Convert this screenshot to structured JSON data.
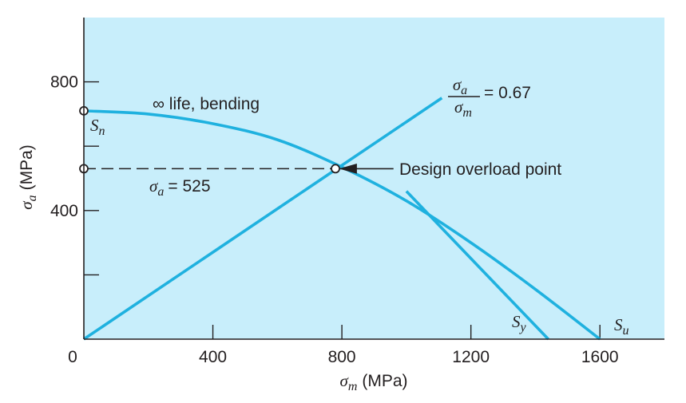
{
  "chart_data": {
    "type": "line",
    "title": "",
    "xlabel": {
      "symbol": "σ",
      "subscript": "m",
      "unit": "(MPa)"
    },
    "ylabel": {
      "symbol": "σ",
      "subscript": "a",
      "unit": "(MPa)"
    },
    "xlim": [
      0,
      1800
    ],
    "ylim": [
      0,
      1000
    ],
    "x_ticks": [
      0,
      400,
      800,
      1200,
      1600
    ],
    "x_minor_ticks": [
      400,
      800,
      1200,
      1600
    ],
    "y_ticks": [
      400,
      800
    ],
    "y_minor_ticks": [
      200,
      400,
      600,
      800
    ],
    "x_tick_labels": [
      "0",
      "400",
      "800",
      "1200",
      "1600"
    ],
    "y_tick_labels": [
      "400",
      "800"
    ],
    "background_color": "#c8eefb",
    "series_color": "#1fb1df",
    "axis_color": "#231f20",
    "series": [
      {
        "name": "∞ life, bending",
        "type": "curve",
        "points": [
          [
            0,
            710
          ],
          [
            200,
            700
          ],
          [
            400,
            670
          ],
          [
            600,
            620
          ],
          [
            800,
            535
          ],
          [
            1000,
            430
          ],
          [
            1200,
            300
          ],
          [
            1400,
            155
          ],
          [
            1600,
            0
          ]
        ]
      },
      {
        "name": "σa/σm = 0.67",
        "type": "line",
        "points": [
          [
            0,
            0
          ],
          [
            1110,
            750
          ]
        ]
      },
      {
        "name": "Sy",
        "type": "line",
        "points": [
          [
            1000,
            460
          ],
          [
            1440,
            0
          ]
        ]
      }
    ],
    "points": [
      {
        "name": "Sn",
        "x": 0,
        "y": 710
      },
      {
        "name": "σa = 525 marker",
        "x": 0,
        "y": 530
      },
      {
        "name": "Design overload point",
        "x": 780,
        "y": 530
      }
    ],
    "dashed_line": {
      "from": [
        0,
        530
      ],
      "to": [
        780,
        530
      ]
    },
    "arrow": {
      "from": [
        960,
        530
      ],
      "to": [
        795,
        530
      ]
    },
    "annotations": {
      "curve_label": "∞ life, bending",
      "sn_symbol": "S",
      "sn_subscript": "n",
      "sigma_a_symbol": "σ",
      "sigma_a_subscript": "a",
      "sigma_a_value": "= 525",
      "ratio_numerator_symbol": "σ",
      "ratio_numerator_subscript": "a",
      "ratio_denominator_symbol": "σ",
      "ratio_denominator_subscript": "m",
      "ratio_value": "= 0.67",
      "design_overload_label": "Design overload point",
      "sy_symbol": "S",
      "sy_subscript": "y",
      "su_symbol": "S",
      "su_subscript": "u"
    }
  }
}
